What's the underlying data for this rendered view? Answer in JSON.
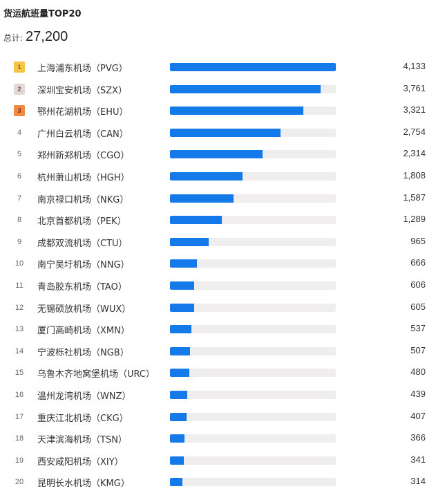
{
  "header": {
    "title": "货运航班量TOP20",
    "total_label": "总计:",
    "total_value": "27,200"
  },
  "colors": {
    "bar": "#1479e9",
    "track": "#efeded",
    "rank1": "#f7c545",
    "rank2": "#e2d9d6",
    "rank3": "#f28a43"
  },
  "rows": [
    {
      "rank": "1",
      "name": "上海浦东机场（PVG）",
      "value": "4,133",
      "num": 4133
    },
    {
      "rank": "2",
      "name": "深圳宝安机场（SZX）",
      "value": "3,761",
      "num": 3761
    },
    {
      "rank": "3",
      "name": "鄂州花湖机场（EHU）",
      "value": "3,321",
      "num": 3321
    },
    {
      "rank": "4",
      "name": "广州白云机场（CAN）",
      "value": "2,754",
      "num": 2754
    },
    {
      "rank": "5",
      "name": "郑州新郑机场（CGO）",
      "value": "2,314",
      "num": 2314
    },
    {
      "rank": "6",
      "name": "杭州萧山机场（HGH）",
      "value": "1,808",
      "num": 1808
    },
    {
      "rank": "7",
      "name": "南京禄口机场（NKG）",
      "value": "1,587",
      "num": 1587
    },
    {
      "rank": "8",
      "name": "北京首都机场（PEK）",
      "value": "1,289",
      "num": 1289
    },
    {
      "rank": "9",
      "name": "成都双流机场（CTU）",
      "value": "965",
      "num": 965
    },
    {
      "rank": "10",
      "name": "南宁吴圩机场（NNG）",
      "value": "666",
      "num": 666
    },
    {
      "rank": "11",
      "name": "青岛胶东机场（TAO）",
      "value": "606",
      "num": 606
    },
    {
      "rank": "12",
      "name": "无锡硕放机场（WUX）",
      "value": "605",
      "num": 605
    },
    {
      "rank": "13",
      "name": "厦门高崎机场（XMN）",
      "value": "537",
      "num": 537
    },
    {
      "rank": "14",
      "name": "宁波栎社机场（NGB）",
      "value": "507",
      "num": 507
    },
    {
      "rank": "15",
      "name": "乌鲁木齐地窝堡机场（URC）",
      "value": "480",
      "num": 480
    },
    {
      "rank": "16",
      "name": "温州龙湾机场（WNZ）",
      "value": "439",
      "num": 439
    },
    {
      "rank": "17",
      "name": "重庆江北机场（CKG）",
      "value": "407",
      "num": 407
    },
    {
      "rank": "18",
      "name": "天津滨海机场（TSN）",
      "value": "366",
      "num": 366
    },
    {
      "rank": "19",
      "name": "西安咸阳机场（XIY）",
      "value": "341",
      "num": 341
    },
    {
      "rank": "20",
      "name": "昆明长水机场（KMG）",
      "value": "314",
      "num": 314
    }
  ],
  "chart_data": {
    "type": "bar",
    "orientation": "horizontal",
    "title": "货运航班量TOP20",
    "subtitle": "总计: 27,200",
    "categories": [
      "上海浦东机场（PVG）",
      "深圳宝安机场（SZX）",
      "鄂州花湖机场（EHU）",
      "广州白云机场（CAN）",
      "郑州新郑机场（CGO）",
      "杭州萧山机场（HGH）",
      "南京禄口机场（NKG）",
      "北京首都机场（PEK）",
      "成都双流机场（CTU）",
      "南宁吴圩机场（NNG）",
      "青岛胶东机场（TAO）",
      "无锡硕放机场（WUX）",
      "厦门高崎机场（XMN）",
      "宁波栎社机场（NGB）",
      "乌鲁木齐地窝堡机场（URC）",
      "温州龙湾机场（WNZ）",
      "重庆江北机场（CKG）",
      "天津滨海机场（TSN）",
      "西安咸阳机场（XIY）",
      "昆明长水机场（KMG）"
    ],
    "values": [
      4133,
      3761,
      3321,
      2754,
      2314,
      1808,
      1587,
      1289,
      965,
      666,
      606,
      605,
      537,
      507,
      480,
      439,
      407,
      366,
      341,
      314
    ],
    "xlim": [
      0,
      4133
    ],
    "grid": false,
    "legend": null
  }
}
